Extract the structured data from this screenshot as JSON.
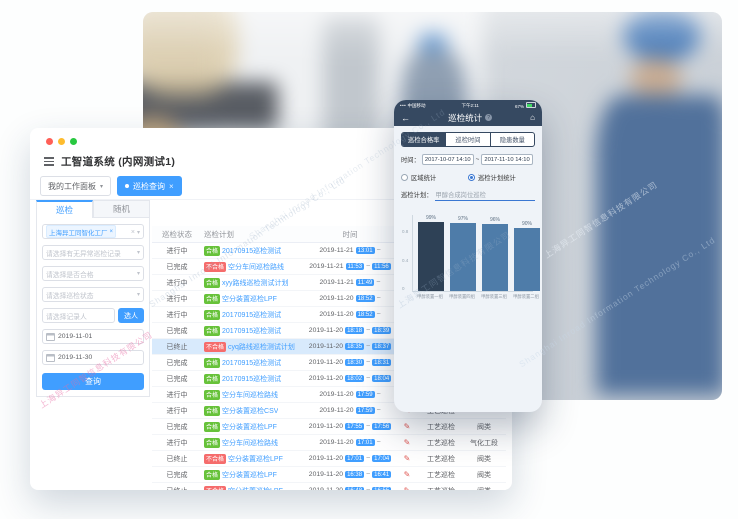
{
  "watermark": {
    "cn": "上海异工同智信息科技有限公司",
    "en": "Shanghai Inroad Information Technology Co., Ltd"
  },
  "window": {
    "title": "工智道系统 (内网测试1)",
    "tabs": [
      {
        "label": "我的工作面板"
      },
      {
        "label": "巡检查询",
        "active": true
      }
    ],
    "sidebar": {
      "tabs": [
        "巡检",
        "随机"
      ],
      "org_tag": "上海异工同智化工厂",
      "selects": [
        "请选择有无异常巡检记录",
        "请选择是否合格",
        "请选择巡检状态"
      ],
      "person_placeholder": "请选择记录人",
      "pick_person_button": "选人",
      "date_start": "2019-11-01",
      "date_end": "2019-11-30",
      "search_button": "查询"
    },
    "table": {
      "headers": [
        "巡检状态",
        "巡检计划",
        "时间",
        "",
        "",
        ""
      ],
      "rows": [
        {
          "status": "进行中",
          "result": "合格",
          "plan": "20170915巡检测试",
          "date": "2019-11-21",
          "start": "13:01",
          "end": "",
          "type": "工艺巡检",
          "area": "",
          "highlight": false
        },
        {
          "status": "已完成",
          "result": "不合格",
          "plan": "空分车间巡检路线",
          "date": "2019-11-21",
          "start": "11:53",
          "end": "11:56",
          "type": "工艺巡检",
          "area": "",
          "highlight": false
        },
        {
          "status": "进行中",
          "result": "合格",
          "plan": "xyy路线巡检测试计划",
          "date": "2019-11-21",
          "start": "11:49",
          "end": "",
          "type": "工艺巡检",
          "area": "",
          "highlight": false
        },
        {
          "status": "进行中",
          "result": "合格",
          "plan": "空分装置巡检LPF",
          "date": "2019-11-20",
          "start": "18:52",
          "end": "",
          "type": "工艺巡检",
          "area": "",
          "highlight": false
        },
        {
          "status": "进行中",
          "result": "合格",
          "plan": "20170915巡检测试",
          "date": "2019-11-20",
          "start": "18:52",
          "end": "",
          "type": "工艺巡检",
          "area": "",
          "highlight": false
        },
        {
          "status": "已完成",
          "result": "合格",
          "plan": "20170915巡检测试",
          "date": "2019-11-20",
          "start": "18:18",
          "end": "18:39",
          "type": "工艺巡检",
          "area": "",
          "highlight": false
        },
        {
          "status": "已终止",
          "result": "不合格",
          "plan": "cyq路线巡检测试计划",
          "date": "2019-11-20",
          "start": "18:35",
          "end": "18:37",
          "type": "工艺巡检",
          "area": "",
          "highlight": true
        },
        {
          "status": "已完成",
          "result": "合格",
          "plan": "20170915巡检测试",
          "date": "2019-11-20",
          "start": "18:30",
          "end": "18:31",
          "type": "工艺巡检",
          "area": "",
          "highlight": false
        },
        {
          "status": "已完成",
          "result": "合格",
          "plan": "20170915巡检测试",
          "date": "2019-11-20",
          "start": "18:02",
          "end": "18:04",
          "type": "工艺巡检",
          "area": "",
          "highlight": false
        },
        {
          "status": "进行中",
          "result": "合格",
          "plan": "空分车间巡检路线",
          "date": "2019-11-20",
          "start": "17:59",
          "end": "",
          "type": "工艺巡检",
          "area": "",
          "highlight": false
        },
        {
          "status": "进行中",
          "result": "合格",
          "plan": "空分装置巡检CSV",
          "date": "2019-11-20",
          "start": "17:59",
          "end": "",
          "type": "工艺巡检",
          "area": "",
          "highlight": false
        },
        {
          "status": "已完成",
          "result": "合格",
          "plan": "空分装置巡检LPF",
          "date": "2019-11-20",
          "start": "17:55",
          "end": "17:56",
          "type": "工艺巡检",
          "area": "阀类",
          "highlight": false
        },
        {
          "status": "进行中",
          "result": "合格",
          "plan": "空分车间巡检路线",
          "date": "2019-11-20",
          "start": "17:01",
          "end": "",
          "type": "工艺巡检",
          "area": "气化工段",
          "highlight": false
        },
        {
          "status": "已终止",
          "result": "不合格",
          "plan": "空分装置巡检LPF",
          "date": "2019-11-20",
          "start": "17:01",
          "end": "17:04",
          "type": "工艺巡检",
          "area": "阀类",
          "highlight": false
        },
        {
          "status": "已完成",
          "result": "合格",
          "plan": "空分装置巡检LPF",
          "date": "2019-11-20",
          "start": "16:38",
          "end": "16:41",
          "type": "工艺巡检",
          "area": "阀类",
          "highlight": false
        },
        {
          "status": "已终止",
          "result": "不合格",
          "plan": "空分装置巡检LPF",
          "date": "2019-11-20",
          "start": "16:48",
          "end": "16:55",
          "type": "工艺巡检",
          "area": "阀类",
          "highlight": false
        }
      ]
    }
  },
  "phone": {
    "status_bar": {
      "carrier": "中国移动",
      "time": "下午2:11",
      "battery": "67%"
    },
    "nav": {
      "back": "←",
      "title": "巡检统计",
      "help": "?",
      "home": "⌂"
    },
    "segments": [
      {
        "label": "巡检合格率",
        "active": true
      },
      {
        "label": "巡检时间",
        "active": false
      },
      {
        "label": "隐患数量",
        "active": false
      }
    ],
    "time_label": "时间：",
    "time_from": "2017-10-07 14:10",
    "time_separator": "~",
    "time_to": "2017-11-10 14:10",
    "radios": [
      {
        "label": "区域统计",
        "checked": false
      },
      {
        "label": "巡检计划统计",
        "checked": true
      }
    ],
    "plan_label": "巡检计划：",
    "plan_value": "甲醇合成岗位巡检"
  },
  "chart_data": {
    "type": "bar",
    "categories": [
      "甲醇装置一组",
      "甲醇装置四组",
      "甲醇装置三组",
      "甲醇装置二组"
    ],
    "values": [
      0.99,
      0.97,
      0.96,
      0.9
    ],
    "labels": [
      "99%",
      "97%",
      "96%",
      "90%"
    ],
    "title": "",
    "xlabel": "",
    "ylabel": "",
    "ylim": [
      0,
      1
    ],
    "yticks": [
      "0.8",
      "0.4",
      "0"
    ],
    "bar_colors": [
      "#2e4156",
      "#4e7ca9",
      "#4e7ca9",
      "#4e7ca9"
    ],
    "legend": [],
    "grid": false
  }
}
